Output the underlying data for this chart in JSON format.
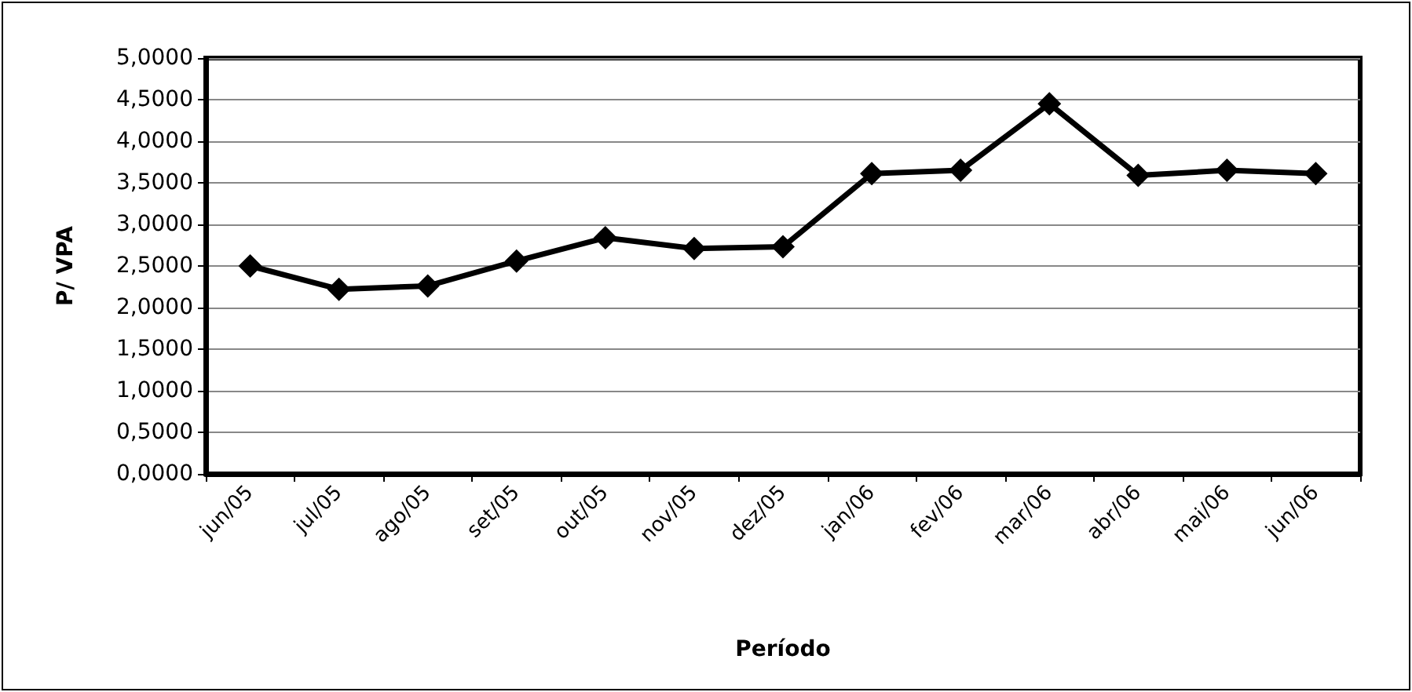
{
  "chart_data": {
    "type": "line",
    "xlabel": "Período",
    "ylabel": "P/ VPA",
    "categories": [
      "jun/05",
      "jul/05",
      "ago/05",
      "set/05",
      "out/05",
      "nov/05",
      "dez/05",
      "jan/06",
      "fev/06",
      "mar/06",
      "abr/06",
      "mai/06",
      "jun/06"
    ],
    "series": [
      {
        "color": "#000000",
        "values": [
          2.5,
          2.22,
          2.26,
          2.56,
          2.84,
          2.71,
          2.73,
          3.61,
          3.65,
          4.45,
          3.59,
          3.65,
          3.61
        ]
      }
    ],
    "ylim": [
      0,
      5
    ],
    "yticks": [
      {
        "value": 0,
        "label": "0,0000"
      },
      {
        "value": 0.5,
        "label": "0,5000"
      },
      {
        "value": 1,
        "label": "1,0000"
      },
      {
        "value": 1.5,
        "label": "1,5000"
      },
      {
        "value": 2,
        "label": "2,0000"
      },
      {
        "value": 2.5,
        "label": "2,5000"
      },
      {
        "value": 3,
        "label": "3,0000"
      },
      {
        "value": 3.5,
        "label": "3,5000"
      },
      {
        "value": 4,
        "label": "4,0000"
      },
      {
        "value": 4.5,
        "label": "4,5000"
      },
      {
        "value": 5,
        "label": "5,0000"
      }
    ],
    "grid": "y",
    "marker": "diamond",
    "line_style": "solid"
  }
}
